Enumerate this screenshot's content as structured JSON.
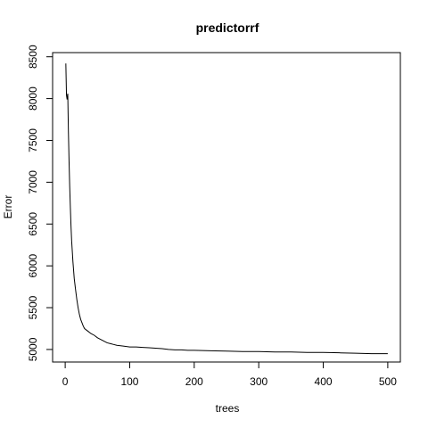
{
  "chart_data": {
    "type": "line",
    "title": "predictorrf",
    "xlabel": "trees",
    "ylabel": "Error",
    "xlim": [
      0,
      500
    ],
    "ylim": [
      4850,
      8550
    ],
    "xticks": [
      0,
      100,
      200,
      300,
      400,
      500
    ],
    "yticks": [
      5000,
      5500,
      6000,
      6500,
      7000,
      7500,
      8000,
      8500
    ],
    "grid": false,
    "legend": "none",
    "line_color": "#000000",
    "series": [
      {
        "x": [
          1,
          2,
          3,
          4,
          5,
          6,
          7,
          8,
          9,
          10,
          12,
          14,
          16,
          18,
          20,
          22,
          24,
          26,
          28,
          30,
          35,
          40,
          45,
          50,
          55,
          60,
          65,
          70,
          75,
          80,
          90,
          100,
          110,
          120,
          130,
          140,
          150,
          160,
          170,
          180,
          190,
          200,
          225,
          250,
          275,
          300,
          325,
          350,
          375,
          400,
          425,
          450,
          475,
          500
        ],
        "y": [
          8420,
          8040,
          7990,
          8060,
          7600,
          7250,
          6950,
          6700,
          6480,
          6300,
          6050,
          5850,
          5720,
          5600,
          5500,
          5420,
          5360,
          5320,
          5280,
          5250,
          5220,
          5190,
          5170,
          5140,
          5120,
          5100,
          5080,
          5070,
          5060,
          5050,
          5040,
          5030,
          5030,
          5025,
          5020,
          5015,
          5010,
          5000,
          4995,
          4995,
          4990,
          4990,
          4985,
          4980,
          4975,
          4975,
          4970,
          4970,
          4965,
          4965,
          4960,
          4955,
          4950,
          4950
        ]
      }
    ]
  }
}
